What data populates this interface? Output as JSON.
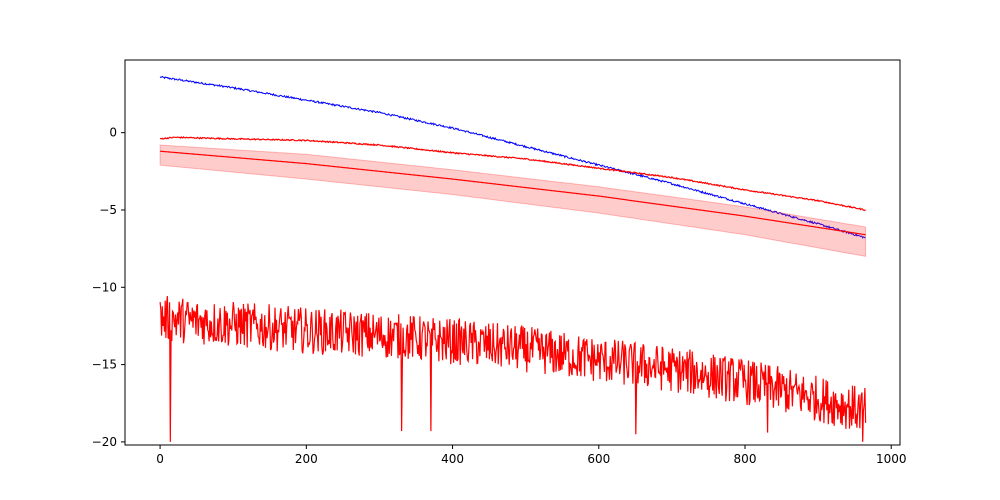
{
  "chart_data": {
    "type": "line",
    "title": "",
    "xlabel": "",
    "ylabel": "",
    "xlim": [
      -48,
      1012
    ],
    "ylim": [
      -20.2,
      4.7
    ],
    "x_ticks": [
      0,
      200,
      400,
      600,
      800,
      1000
    ],
    "x_tick_labels": [
      "0",
      "200",
      "400",
      "600",
      "800",
      "1000"
    ],
    "y_ticks": [
      0,
      -5,
      -10,
      -15,
      -20
    ],
    "y_tick_labels": [
      "0",
      "−5",
      "−10",
      "−15",
      "−20"
    ],
    "grid": false,
    "legend": "none",
    "n_points": 965,
    "series": [
      {
        "style": "noisy-line",
        "color": "#0000ff",
        "x": [
          0,
          100,
          200,
          300,
          400,
          500,
          600,
          700,
          800,
          900,
          965
        ],
        "y": [
          3.6,
          2.9,
          2.1,
          1.3,
          0.3,
          -0.9,
          -2.1,
          -3.3,
          -4.6,
          -5.9,
          -6.8
        ],
        "noise_amplitude": 0.06
      },
      {
        "style": "line",
        "color": "#ff0000",
        "x": [
          0,
          20,
          100,
          200,
          300,
          400,
          500,
          600,
          700,
          800,
          900,
          965
        ],
        "y": [
          -0.4,
          -0.3,
          -0.4,
          -0.5,
          -0.8,
          -1.3,
          -1.7,
          -2.3,
          -2.9,
          -3.7,
          -4.4,
          -5.0
        ],
        "noise_amplitude": 0.04
      },
      {
        "style": "line-with-band",
        "color": "#ff0000",
        "x": [
          0,
          200,
          400,
          600,
          800,
          965
        ],
        "y": [
          -1.2,
          -2.0,
          -3.0,
          -4.1,
          -5.4,
          -6.6
        ],
        "band_lower": [
          -2.1,
          -3.0,
          -4.0,
          -5.2,
          -6.6,
          -8.0
        ],
        "band_upper": [
          -0.8,
          -1.4,
          -2.4,
          -3.5,
          -4.8,
          -6.1
        ]
      },
      {
        "style": "noisy-line",
        "color": "#ff0000",
        "x": [
          0,
          100,
          200,
          300,
          400,
          500,
          600,
          700,
          800,
          900,
          965
        ],
        "y": [
          -12.0,
          -12.4,
          -12.8,
          -13.1,
          -13.5,
          -14.0,
          -14.7,
          -15.3,
          -16.1,
          -17.2,
          -18.0
        ],
        "noise_amplitude": 1.5,
        "outliers": [
          [
            14,
            -20.0
          ],
          [
            330,
            -19.3
          ],
          [
            370,
            -19.3
          ],
          [
            650,
            -19.5
          ],
          [
            830,
            -19.4
          ],
          [
            960,
            -20.0
          ]
        ]
      }
    ]
  }
}
